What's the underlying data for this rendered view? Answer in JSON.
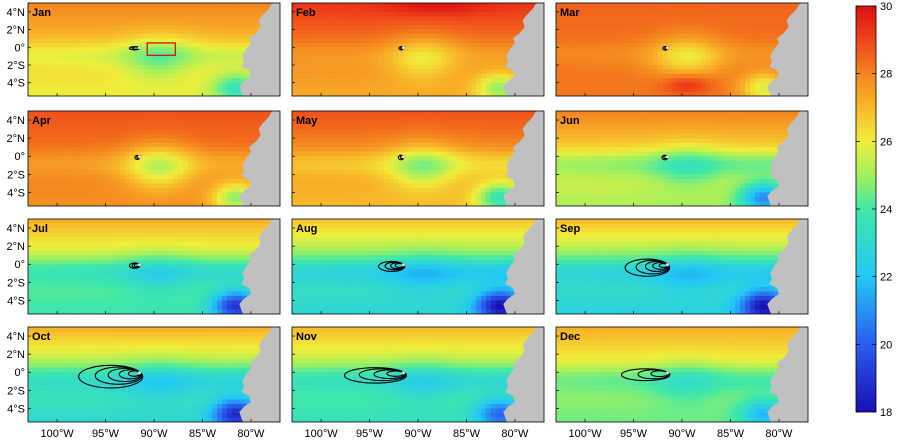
{
  "panels": [
    {
      "month": "Jan",
      "variant": "jan",
      "contours": [
        [
          0.55,
          0.18
        ],
        [
          0.38,
          0.12
        ]
      ],
      "box": true
    },
    {
      "month": "Feb",
      "variant": "feb",
      "contours": [
        [
          0.25,
          0.18
        ],
        [
          0.15,
          0.11
        ]
      ],
      "box": false
    },
    {
      "month": "Mar",
      "variant": "mar",
      "contours": [
        [
          0.25,
          0.2
        ],
        [
          0.14,
          0.12
        ]
      ],
      "box": false
    },
    {
      "month": "Apr",
      "variant": "apr",
      "contours": [
        [
          0.25,
          0.22
        ],
        [
          0.14,
          0.13
        ]
      ],
      "box": false
    },
    {
      "month": "May",
      "variant": "may",
      "contours": [
        [
          0.28,
          0.25
        ],
        [
          0.18,
          0.16
        ]
      ],
      "box": false
    },
    {
      "month": "Jun",
      "variant": "jun",
      "contours": [
        [
          0.3,
          0.25
        ],
        [
          0.2,
          0.17
        ]
      ],
      "box": false
    },
    {
      "month": "Jul",
      "variant": "jul",
      "contours": [
        [
          0.55,
          0.3
        ],
        [
          0.4,
          0.24
        ],
        [
          0.28,
          0.17
        ]
      ],
      "box": false
    },
    {
      "month": "Aug",
      "variant": "aug",
      "contours": [
        [
          1.35,
          0.55
        ],
        [
          1.0,
          0.42
        ],
        [
          0.7,
          0.33
        ],
        [
          0.45,
          0.22
        ]
      ],
      "box": false
    },
    {
      "month": "Sep",
      "variant": "sep",
      "contours": [
        [
          2.3,
          0.95
        ],
        [
          1.7,
          0.75
        ],
        [
          1.2,
          0.55
        ],
        [
          0.8,
          0.38
        ],
        [
          0.45,
          0.22
        ]
      ],
      "box": false
    },
    {
      "month": "Oct",
      "variant": "oct",
      "contours": [
        [
          3.3,
          1.25
        ],
        [
          2.4,
          0.95
        ],
        [
          1.7,
          0.72
        ],
        [
          1.1,
          0.5
        ],
        [
          0.6,
          0.3
        ]
      ],
      "box": false
    },
    {
      "month": "Nov",
      "variant": "nov",
      "contours": [
        [
          3.2,
          0.85
        ],
        [
          2.4,
          0.65
        ],
        [
          1.6,
          0.48
        ],
        [
          0.9,
          0.3
        ]
      ],
      "box": false
    },
    {
      "month": "Dec",
      "variant": "dec",
      "contours": [
        [
          2.5,
          0.65
        ],
        [
          1.6,
          0.5
        ],
        [
          0.9,
          0.32
        ]
      ],
      "box": false
    }
  ],
  "axes": {
    "lat_labels": [
      "4°N",
      "2°N",
      "0°",
      "2°S",
      "4°S"
    ],
    "lat_values": [
      4,
      2,
      0,
      -2,
      -4
    ],
    "lon_labels": [
      "100°W",
      "95°W",
      "90°W",
      "85°W",
      "80°W"
    ],
    "lon_values": [
      -100,
      -95,
      -90,
      -85,
      -80
    ],
    "lon_range": [
      -103,
      -77
    ],
    "lat_range": [
      -5.5,
      5
    ]
  },
  "colorbar": {
    "min": 18,
    "max": 30,
    "tick_values": [
      18,
      20,
      22,
      24,
      26,
      28,
      30
    ],
    "tick_labels": [
      "18",
      "20",
      "22",
      "24",
      "26",
      "28",
      "30"
    ]
  },
  "colors": {
    "land": "#c0c0c0",
    "contour": "#000000",
    "box": "#e00000",
    "eddy_center": "#ffffff"
  }
}
